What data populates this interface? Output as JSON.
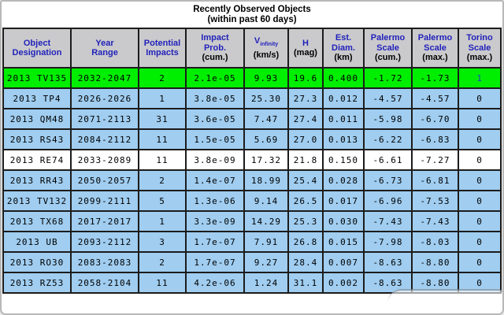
{
  "title": {
    "line1": "Recently Observed Objects",
    "line2": "(within past 60 days)"
  },
  "colors": {
    "header_bg": "#cacacc",
    "row_blue": "#a0cdf0",
    "row_green": "#00ee00",
    "row_white": "#ffffff",
    "link_blue": "#2936d4",
    "header_label_blue": "#2222bb",
    "grid_border": "#1c1c1c"
  },
  "table": {
    "headers": {
      "designation": {
        "label": "Object\nDesignation"
      },
      "year": {
        "label": "Year\nRange"
      },
      "impacts": {
        "label": "Potential\nImpacts"
      },
      "prob": {
        "label": "Impact\nProb.",
        "unit": "(cum.)"
      },
      "vinf": {
        "main": "V",
        "sub": "infinity",
        "unit": "(km/s)"
      },
      "h": {
        "label": "H",
        "unit": "(mag)"
      },
      "diam": {
        "label": "Est.\nDiam.",
        "unit": "(km)"
      },
      "palermo_cum": {
        "label": "Palermo\nScale",
        "unit": "(cum.)"
      },
      "palermo_max": {
        "label": "Palermo\nScale",
        "unit": "(max.)"
      },
      "torino": {
        "label": "Torino\nScale",
        "unit": "(max.)"
      }
    },
    "rows": [
      {
        "designation": "2013 TV135",
        "year_range": "2032-2047",
        "impacts": "2",
        "prob": "2.1e-05",
        "vinf": "9.93",
        "h": "19.6",
        "diam": "0.400",
        "palermo_cum": "-1.72",
        "palermo_max": "-1.73",
        "torino": "1",
        "highlight": "green",
        "faded_cols": false
      },
      {
        "designation": "2013 TP4",
        "year_range": "2026-2026",
        "impacts": "1",
        "prob": "3.8e-05",
        "vinf": "25.30",
        "h": "27.3",
        "diam": "0.012",
        "palermo_cum": "-4.57",
        "palermo_max": "-4.57",
        "torino": "0",
        "highlight": "blue",
        "faded_cols": false
      },
      {
        "designation": "2013 QM48",
        "year_range": "2071-2113",
        "impacts": "31",
        "prob": "3.6e-05",
        "vinf": "7.47",
        "h": "27.4",
        "diam": "0.011",
        "palermo_cum": "-5.98",
        "palermo_max": "-6.70",
        "torino": "0",
        "highlight": "blue",
        "faded_cols": false
      },
      {
        "designation": "2013 RS43",
        "year_range": "2084-2112",
        "impacts": "11",
        "prob": "1.5e-05",
        "vinf": "5.69",
        "h": "27.0",
        "diam": "0.013",
        "palermo_cum": "-6.22",
        "palermo_max": "-6.83",
        "torino": "0",
        "highlight": "blue",
        "faded_cols": false
      },
      {
        "designation": "2013 RE74",
        "year_range": "2033-2089",
        "impacts": "11",
        "prob": "3.8e-09",
        "vinf": "17.32",
        "h": "21.8",
        "diam": "0.150",
        "palermo_cum": "-6.61",
        "palermo_max": "-7.27",
        "torino": "0",
        "highlight": "white",
        "faded_cols": false
      },
      {
        "designation": "2013 RR43",
        "year_range": "2050-2057",
        "impacts": "2",
        "prob": "1.4e-07",
        "vinf": "18.99",
        "h": "25.4",
        "diam": "0.028",
        "palermo_cum": "-6.73",
        "palermo_max": "-6.81",
        "torino": "0",
        "highlight": "blue",
        "faded_cols": false
      },
      {
        "designation": "2013 TV132",
        "year_range": "2099-2111",
        "impacts": "5",
        "prob": "1.3e-06",
        "vinf": "9.14",
        "h": "26.5",
        "diam": "0.017",
        "palermo_cum": "-6.96",
        "palermo_max": "-7.53",
        "torino": "0",
        "highlight": "blue",
        "faded_cols": false
      },
      {
        "designation": "2013 TX68",
        "year_range": "2017-2017",
        "impacts": "1",
        "prob": "3.3e-09",
        "vinf": "14.29",
        "h": "25.3",
        "diam": "0.030",
        "palermo_cum": "-7.43",
        "palermo_max": "-7.43",
        "torino": "0",
        "highlight": "blue",
        "faded_cols": false
      },
      {
        "designation": "2013 UB",
        "year_range": "2093-2112",
        "impacts": "3",
        "prob": "1.7e-07",
        "vinf": "7.91",
        "h": "26.8",
        "diam": "0.015",
        "palermo_cum": "-7.98",
        "palermo_max": "-8.03",
        "torino": "0",
        "highlight": "blue",
        "faded_cols": false
      },
      {
        "designation": "2013 RO30",
        "year_range": "2083-2083",
        "impacts": "2",
        "prob": "1.7e-07",
        "vinf": "9.27",
        "h": "28.4",
        "diam": "0.007",
        "palermo_cum": "-8.63",
        "palermo_max": "-8.80",
        "torino": "0",
        "highlight": "blue",
        "faded_cols": false
      },
      {
        "designation": "2013 RZ53",
        "year_range": "2058-2104",
        "impacts": "11",
        "prob": "4.2e-06",
        "vinf": "1.24",
        "h": "31.1",
        "diam": "0.002",
        "palermo_cum": "-8.63",
        "palermo_max": "-8.80",
        "torino": "0",
        "highlight": "blue",
        "faded_cols": true
      }
    ]
  }
}
